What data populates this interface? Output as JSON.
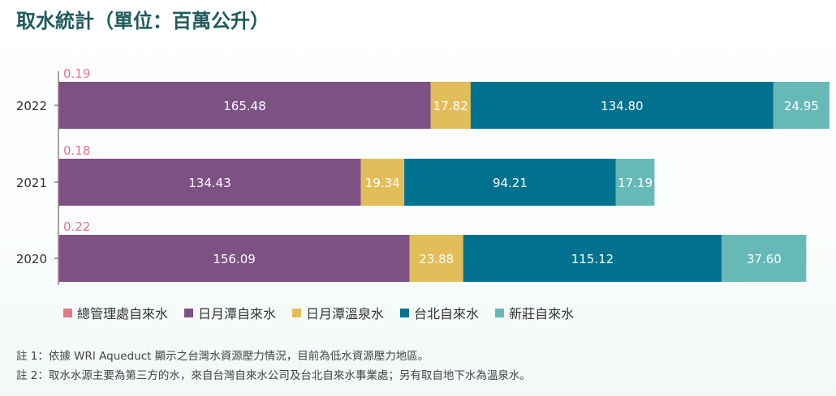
{
  "title": "取水統計（單位：百萬公升）",
  "colors": {
    "總管理處自來水": "#e0798a",
    "日月潭自來水": "#7e5185",
    "日月潭溫泉水": "#e3bd5a",
    "台北自來水": "#00728f",
    "新莊自來水": "#67b9b8"
  },
  "legend": [
    {
      "label": "總管理處自來水",
      "color": "#e0798a"
    },
    {
      "label": "日月潭自來水",
      "color": "#7e5185"
    },
    {
      "label": "日月潭溫泉水",
      "color": "#e3bd5a"
    },
    {
      "label": "台北自來水",
      "color": "#00728f"
    },
    {
      "label": "新莊自來水",
      "color": "#67b9b8"
    }
  ],
  "notes": [
    "註 1：依據 WRI Aqueduct 顯示之台灣水資源壓力情況，目前為低水資源壓力地區。",
    "註 2：取水水源主要為第三方的水，來自台灣自來水公司及台北自來水事業處；另有取自地下水為溫泉水。"
  ],
  "chart_data": {
    "type": "bar",
    "orientation": "horizontal",
    "stacked": true,
    "categories": [
      "2022",
      "2021",
      "2020"
    ],
    "series": [
      {
        "name": "總管理處自來水",
        "values": [
          0.19,
          0.18,
          0.22
        ],
        "labels": [
          "0.19",
          "0.18",
          "0.22"
        ]
      },
      {
        "name": "日月潭自來水",
        "values": [
          165.48,
          134.43,
          156.09
        ],
        "labels": [
          "165.48",
          "134.43",
          "156.09"
        ]
      },
      {
        "name": "日月潭溫泉水",
        "values": [
          17.82,
          19.34,
          23.88
        ],
        "labels": [
          "17.82",
          "19.34",
          "23.88"
        ]
      },
      {
        "name": "台北自來水",
        "values": [
          134.8,
          94.21,
          115.12
        ],
        "labels": [
          "134.80",
          "94.21",
          "115.12"
        ]
      },
      {
        "name": "新莊自來水",
        "values": [
          24.95,
          17.19,
          37.6
        ],
        "labels": [
          "24.95",
          "17.19",
          "37.60"
        ]
      }
    ],
    "title": "取水統計（單位：百萬公升）",
    "xlabel": "",
    "ylabel": "",
    "legend_position": "bottom",
    "grid": false
  }
}
